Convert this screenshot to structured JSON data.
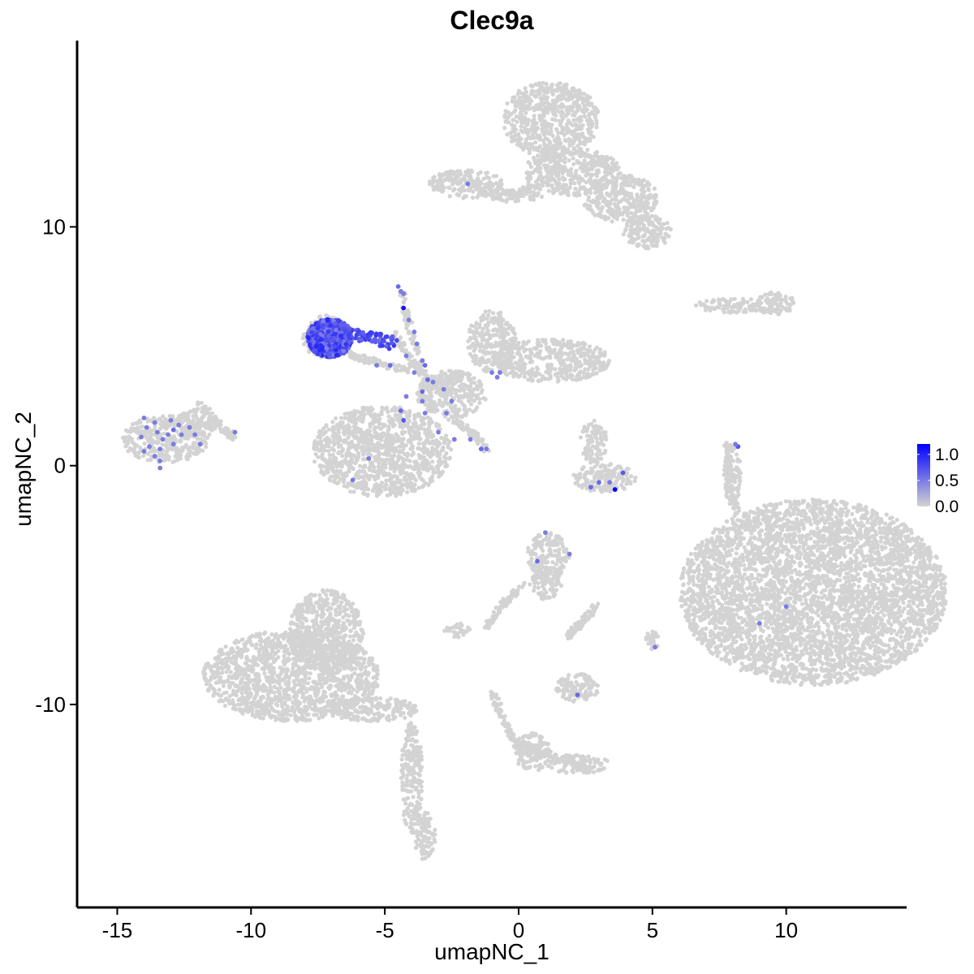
{
  "chart_data": {
    "type": "scatter",
    "title": "Clec9a",
    "xlabel": "umapNC_1",
    "ylabel": "umapNC_2",
    "xlim": [
      -16.5,
      14.5
    ],
    "ylim": [
      -18.5,
      17.8
    ],
    "x_ticks": [
      -15,
      -10,
      -5,
      0,
      5,
      10
    ],
    "x_tick_labels": [
      "-15",
      "-10",
      "-5",
      "0",
      "5",
      "10"
    ],
    "y_ticks": [
      -10,
      0,
      10
    ],
    "y_tick_labels": [
      "-10",
      "0",
      "10"
    ],
    "grid": false,
    "legend_position": "right",
    "colors": {
      "low": "#d3d3d3",
      "high": "#0000ff"
    },
    "color_scale": {
      "min": 0.0,
      "max": 1.2,
      "breaks": [
        0.0,
        0.5,
        1.0
      ],
      "break_labels": [
        "0.0",
        "0.5",
        "1.0"
      ]
    },
    "clusters": [
      {
        "cx": 11.0,
        "cy": -5.3,
        "rx": 5.0,
        "ry": 3.9
      },
      {
        "cx": -8.5,
        "cy": -8.8,
        "rx": 3.3,
        "ry": 1.9
      },
      {
        "cx": -7.2,
        "cy": -7.0,
        "rx": 1.4,
        "ry": 1.8
      },
      {
        "cx": -5.5,
        "cy": -10.2,
        "rx": 1.8,
        "ry": 0.5
      },
      {
        "cx": -4.0,
        "cy": -13.0,
        "rx": 0.4,
        "ry": 2.4
      },
      {
        "cx": -3.5,
        "cy": -15.5,
        "rx": 0.4,
        "ry": 1.0
      },
      {
        "cx": 1.2,
        "cy": 14.5,
        "rx": 1.8,
        "ry": 1.6
      },
      {
        "cx": 2.0,
        "cy": 12.3,
        "rx": 1.8,
        "ry": 1.0
      },
      {
        "cx": 3.8,
        "cy": 11.2,
        "rx": 1.4,
        "ry": 1.0
      },
      {
        "cx": 4.8,
        "cy": 9.8,
        "rx": 0.9,
        "ry": 0.7
      },
      {
        "cx": -2.0,
        "cy": 11.8,
        "rx": 1.4,
        "ry": 0.6
      },
      {
        "cx": -0.2,
        "cy": 11.3,
        "rx": 1.1,
        "ry": 0.25
      },
      {
        "cx": -5.1,
        "cy": 0.6,
        "rx": 2.6,
        "ry": 1.9
      },
      {
        "cx": -1.0,
        "cy": 5.2,
        "rx": 0.9,
        "ry": 1.3
      },
      {
        "cx": 1.2,
        "cy": 4.4,
        "rx": 2.2,
        "ry": 0.9
      },
      {
        "cx": -2.5,
        "cy": 3.0,
        "rx": 1.3,
        "ry": 1.0
      },
      {
        "cx": -13.2,
        "cy": 1.1,
        "rx": 1.6,
        "ry": 1.0
      },
      {
        "cx": -12.0,
        "cy": 1.8,
        "rx": 0.8,
        "ry": 0.6
      },
      {
        "cx": 3.2,
        "cy": -0.5,
        "rx": 1.2,
        "ry": 0.6
      },
      {
        "cx": 2.8,
        "cy": 1.0,
        "rx": 0.5,
        "ry": 0.9
      },
      {
        "cx": 8.2,
        "cy": 6.7,
        "rx": 1.6,
        "ry": 0.3
      },
      {
        "cx": 9.6,
        "cy": 6.8,
        "rx": 0.7,
        "ry": 0.5
      },
      {
        "cx": 1.1,
        "cy": -3.8,
        "rx": 0.8,
        "ry": 1.0
      },
      {
        "cx": 1.0,
        "cy": -5.0,
        "rx": 0.6,
        "ry": 0.6
      },
      {
        "cx": -2.3,
        "cy": -6.9,
        "rx": 0.5,
        "ry": 0.3
      },
      {
        "cx": 2.2,
        "cy": -9.3,
        "rx": 0.8,
        "ry": 0.6
      },
      {
        "cx": 5.0,
        "cy": -7.3,
        "rx": 0.25,
        "ry": 0.4
      },
      {
        "cx": 0.5,
        "cy": -12.0,
        "rx": 0.7,
        "ry": 0.8
      },
      {
        "cx": 2.2,
        "cy": -12.5,
        "rx": 1.2,
        "ry": 0.4
      },
      {
        "cx": 8.0,
        "cy": -0.4,
        "rx": 0.3,
        "ry": 1.4
      },
      {
        "cx": -7.2,
        "cy": 5.4,
        "rx": 0.9,
        "ry": 0.9
      }
    ],
    "curves": [
      {
        "points": [
          [
            -4.4,
            7.3
          ],
          [
            -4.0,
            5.5
          ],
          [
            -3.6,
            3.8
          ],
          [
            -3.2,
            2.2
          ]
        ]
      },
      {
        "points": [
          [
            -2.5,
            2.0
          ],
          [
            -1.8,
            1.4
          ],
          [
            -1.2,
            0.7
          ]
        ]
      },
      {
        "points": [
          [
            -4.7,
            5.6
          ],
          [
            -4.0,
            4.3
          ],
          [
            -3.2,
            3.5
          ],
          [
            -2.2,
            3.8
          ]
        ]
      },
      {
        "points": [
          [
            -7.0,
            5.2
          ],
          [
            -6.2,
            4.6
          ],
          [
            -5.2,
            4.3
          ],
          [
            -4.2,
            4.0
          ]
        ]
      },
      {
        "points": [
          [
            -1.8,
            12.0
          ],
          [
            -0.2,
            11.3
          ],
          [
            0.8,
            11.8
          ]
        ]
      },
      {
        "points": [
          [
            1.8,
            -7.2
          ],
          [
            2.4,
            -6.5
          ],
          [
            2.9,
            -5.9
          ]
        ]
      },
      {
        "points": [
          [
            -1.2,
            -6.8
          ],
          [
            -0.6,
            -5.8
          ],
          [
            0.2,
            -5.0
          ]
        ]
      },
      {
        "points": [
          [
            -1.0,
            -9.5
          ],
          [
            -0.4,
            -11.0
          ],
          [
            0.2,
            -12.2
          ]
        ]
      },
      {
        "points": [
          [
            0.2,
            -11.6
          ],
          [
            1.4,
            -12.2
          ],
          [
            2.6,
            -12.8
          ]
        ]
      },
      {
        "points": [
          [
            7.8,
            1.0
          ],
          [
            7.8,
            -0.5
          ],
          [
            8.2,
            -2.0
          ]
        ]
      },
      {
        "points": [
          [
            -11.9,
            2.6
          ],
          [
            -11.0,
            1.5
          ],
          [
            -10.6,
            1.2
          ]
        ]
      }
    ],
    "highlight_cluster": {
      "cx": -7.05,
      "cy": 5.35,
      "rx": 0.85,
      "ry": 0.8
    },
    "expressing_points": [
      {
        "x": -4.4,
        "y": 7.3,
        "v": 0.5
      },
      {
        "x": -4.5,
        "y": 7.5,
        "v": 0.6
      },
      {
        "x": -4.3,
        "y": 7.2,
        "v": 0.5
      },
      {
        "x": -4.3,
        "y": 6.6,
        "v": 1.1
      },
      {
        "x": -4.1,
        "y": 6.1,
        "v": 0.5
      },
      {
        "x": -3.9,
        "y": 5.6,
        "v": 0.5
      },
      {
        "x": -3.8,
        "y": 5.1,
        "v": 0.5
      },
      {
        "x": -3.6,
        "y": 4.4,
        "v": 0.5
      },
      {
        "x": -3.5,
        "y": 4.2,
        "v": 0.6
      },
      {
        "x": -3.2,
        "y": 3.5,
        "v": 0.5
      },
      {
        "x": -3.6,
        "y": 3.1,
        "v": 0.6
      },
      {
        "x": -3.9,
        "y": 3.9,
        "v": 0.5
      },
      {
        "x": -4.2,
        "y": 2.9,
        "v": 0.5
      },
      {
        "x": -3.5,
        "y": 2.2,
        "v": 0.5
      },
      {
        "x": -2.5,
        "y": 2.7,
        "v": 0.5
      },
      {
        "x": -2.7,
        "y": 2.2,
        "v": 0.5
      },
      {
        "x": -4.4,
        "y": 2.3,
        "v": 0.6
      },
      {
        "x": -4.3,
        "y": 1.9,
        "v": 0.7
      },
      {
        "x": -3.0,
        "y": 1.4,
        "v": 0.5
      },
      {
        "x": -2.4,
        "y": 1.1,
        "v": 0.5
      },
      {
        "x": -1.8,
        "y": 1.1,
        "v": 0.5
      },
      {
        "x": -1.4,
        "y": 0.7,
        "v": 0.6
      },
      {
        "x": -1.2,
        "y": 0.7,
        "v": 0.5
      },
      {
        "x": -0.7,
        "y": 3.9,
        "v": 0.5
      },
      {
        "x": -2.8,
        "y": 3.2,
        "v": 0.5
      },
      {
        "x": -3.4,
        "y": 3.6,
        "v": 0.6
      },
      {
        "x": -4.8,
        "y": 4.2,
        "v": 0.6
      },
      {
        "x": -5.3,
        "y": 4.2,
        "v": 0.5
      },
      {
        "x": -4.2,
        "y": 4.6,
        "v": 0.5
      },
      {
        "x": -3.6,
        "y": 2.7,
        "v": 0.5
      },
      {
        "x": -5.6,
        "y": 0.3,
        "v": 0.5
      },
      {
        "x": -6.2,
        "y": -0.6,
        "v": 0.5
      },
      {
        "x": -1.9,
        "y": 11.8,
        "v": 0.5
      },
      {
        "x": -14.0,
        "y": 2.0,
        "v": 0.5
      },
      {
        "x": -13.9,
        "y": 1.6,
        "v": 0.5
      },
      {
        "x": -13.6,
        "y": 1.8,
        "v": 0.5
      },
      {
        "x": -13.0,
        "y": 1.9,
        "v": 0.5
      },
      {
        "x": -12.9,
        "y": 1.5,
        "v": 0.6
      },
      {
        "x": -12.7,
        "y": 1.7,
        "v": 0.5
      },
      {
        "x": -13.5,
        "y": 1.4,
        "v": 0.5
      },
      {
        "x": -13.3,
        "y": 1.1,
        "v": 0.5
      },
      {
        "x": -12.6,
        "y": 1.3,
        "v": 0.5
      },
      {
        "x": -12.3,
        "y": 1.6,
        "v": 0.5
      },
      {
        "x": -14.1,
        "y": 1.2,
        "v": 0.5
      },
      {
        "x": -13.8,
        "y": 0.8,
        "v": 0.5
      },
      {
        "x": -13.4,
        "y": 0.7,
        "v": 0.5
      },
      {
        "x": -12.9,
        "y": 0.9,
        "v": 0.5
      },
      {
        "x": -13.1,
        "y": 1.3,
        "v": 0.5
      },
      {
        "x": -14.0,
        "y": 0.6,
        "v": 0.5
      },
      {
        "x": -13.6,
        "y": 0.4,
        "v": 0.5
      },
      {
        "x": -13.4,
        "y": 0.2,
        "v": 0.5
      },
      {
        "x": -12.1,
        "y": 1.3,
        "v": 0.5
      },
      {
        "x": -11.9,
        "y": 0.9,
        "v": 0.5
      },
      {
        "x": -13.4,
        "y": -0.1,
        "v": 0.5
      },
      {
        "x": -10.6,
        "y": 1.4,
        "v": 0.5
      },
      {
        "x": 2.7,
        "y": -0.9,
        "v": 0.6
      },
      {
        "x": 3.0,
        "y": -0.7,
        "v": 0.6
      },
      {
        "x": 3.4,
        "y": -0.7,
        "v": 0.5
      },
      {
        "x": 3.6,
        "y": -1.0,
        "v": 1.2
      },
      {
        "x": 3.9,
        "y": -0.3,
        "v": 0.7
      },
      {
        "x": 8.2,
        "y": 0.8,
        "v": 0.7
      },
      {
        "x": 8.1,
        "y": 0.9,
        "v": 0.5
      },
      {
        "x": -1.0,
        "y": 3.9,
        "v": 0.5
      },
      {
        "x": -0.8,
        "y": 3.7,
        "v": 0.5
      },
      {
        "x": 1.0,
        "y": -2.8,
        "v": 0.5
      },
      {
        "x": 0.7,
        "y": -4.0,
        "v": 0.6
      },
      {
        "x": 1.9,
        "y": -3.7,
        "v": 0.5
      },
      {
        "x": 10.0,
        "y": -5.9,
        "v": 0.5
      },
      {
        "x": 9.0,
        "y": -6.6,
        "v": 0.5
      },
      {
        "x": 2.2,
        "y": -9.6,
        "v": 0.6
      },
      {
        "x": 5.1,
        "y": -7.6,
        "v": 0.5
      }
    ]
  }
}
